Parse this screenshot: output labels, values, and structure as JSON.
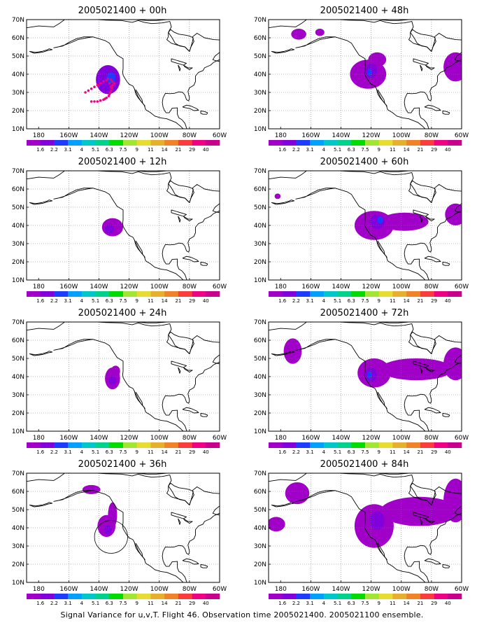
{
  "panels": [
    {
      "title": "2005021400 + 00h",
      "id": "00h"
    },
    {
      "title": "2005021400 + 48h",
      "id": "48h"
    },
    {
      "title": "2005021400 + 12h",
      "id": "12h"
    },
    {
      "title": "2005021400 + 60h",
      "id": "60h"
    },
    {
      "title": "2005021400 + 24h",
      "id": "24h"
    },
    {
      "title": "2005021400 + 72h",
      "id": "72h"
    },
    {
      "title": "2005021400 + 36h",
      "id": "36h"
    },
    {
      "title": "2005021400 + 84h",
      "id": "84h"
    }
  ],
  "axes": {
    "lat_labels": [
      "70N",
      "60N",
      "50N",
      "40N",
      "30N",
      "20N",
      "10N"
    ],
    "lon_labels": [
      "180",
      "160W",
      "140W",
      "120W",
      "100W",
      "80W",
      "60W"
    ]
  },
  "legend": {
    "labels": [
      "1.6",
      "2.2",
      "3.1",
      "4",
      "5.1",
      "6.3",
      "7.5",
      "9",
      "11",
      "14",
      "21",
      "29",
      "40"
    ],
    "colors": [
      "#a000c8",
      "#8200dc",
      "#1e3cff",
      "#00a0ff",
      "#00c8c8",
      "#00d28c",
      "#00dc00",
      "#a0e632",
      "#e6dc32",
      "#e6af2d",
      "#f08228",
      "#fa3c3c",
      "#f00082",
      "#c8008c"
    ]
  },
  "colors": {
    "variance_low": "#a000c8",
    "variance_mid": "#8200dc",
    "variance_high": "#1e3cff",
    "observation_marker": "#f00082"
  },
  "footer": {
    "text": "Signal Variance for u,v,T. Flight 46. Observation time 2005021400. 2005021100 ensemble."
  }
}
